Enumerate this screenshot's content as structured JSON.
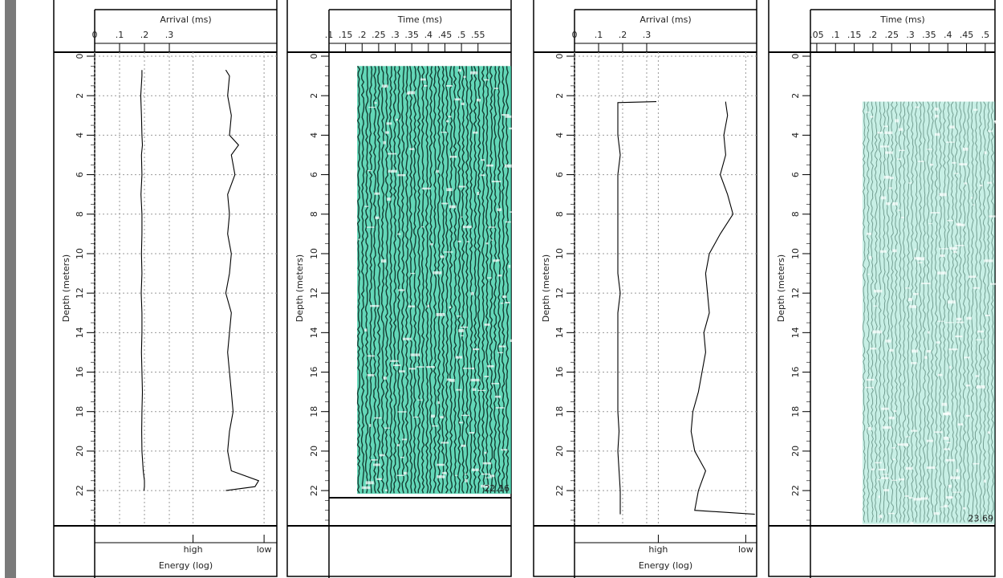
{
  "chart_data": [
    {
      "type": "log",
      "title": "Arrival (ms)",
      "ylabel": "Depth (meters)",
      "x2label": "Energy (log)",
      "xlim": [
        0,
        0.732
      ],
      "xticks": [
        0,
        {
          "value": 0.1,
          "label": ".1"
        },
        {
          "value": 0.2,
          "label": ".2"
        },
        {
          "value": 0.3,
          "label": ".3"
        }
      ],
      "x2lim": [
        0,
        1
      ],
      "x2ticks": [
        {
          "value": 0.54,
          "label": "high"
        },
        {
          "value": 0.93,
          "label": "low"
        }
      ],
      "ylim": [
        0,
        23.5
      ],
      "yticks": [
        0,
        2,
        4,
        6,
        8,
        10,
        12,
        14,
        16,
        18,
        20,
        22
      ],
      "grid": true,
      "depth": [
        0.7,
        1,
        2,
        3,
        4,
        4.5,
        5,
        6,
        7,
        8,
        9,
        10,
        11,
        12,
        13,
        14,
        15,
        16,
        17,
        18,
        19,
        20,
        21,
        21.5,
        21.8,
        22
      ],
      "series": [
        {
          "color": "#000000",
          "values": [
            0.19,
            0.19,
            0.185,
            0.188,
            0.19,
            0.192,
            0.188,
            0.19,
            0.186,
            0.19,
            0.19,
            0.188,
            0.19,
            0.187,
            0.19,
            0.19,
            0.188,
            0.19,
            0.192,
            0.19,
            0.189,
            0.19,
            0.195,
            0.2,
            0.2,
            0.198
          ]
        },
        {
          "color": "#000000",
          "axis": "x2",
          "values": [
            0.72,
            0.74,
            0.73,
            0.75,
            0.74,
            0.79,
            0.75,
            0.77,
            0.73,
            0.74,
            0.73,
            0.75,
            0.74,
            0.72,
            0.75,
            0.74,
            0.73,
            0.74,
            0.75,
            0.76,
            0.74,
            0.73,
            0.75,
            0.9,
            0.88,
            0.72
          ]
        }
      ]
    },
    {
      "type": "seismic",
      "title": "Time (ms)",
      "ylabel": "Depth (meters)",
      "xlim": [
        0.1,
        0.65
      ],
      "xticks": [
        {
          "value": 0.1,
          "label": ".1"
        },
        {
          "value": 0.15,
          "label": ".15"
        },
        {
          "value": 0.2,
          "label": ".2"
        },
        {
          "value": 0.25,
          "label": ".25"
        },
        {
          "value": 0.3,
          "label": ".3"
        },
        {
          "value": 0.35,
          "label": ".35"
        },
        {
          "value": 0.4,
          "label": ".4"
        },
        {
          "value": 0.45,
          "label": ".45"
        },
        {
          "value": 0.5,
          "label": ".5"
        },
        {
          "value": 0.55,
          "label": ".55"
        }
      ],
      "ylim": [
        0,
        23.5
      ],
      "yticks": [
        0,
        2,
        4,
        6,
        8,
        10,
        12,
        14,
        16,
        18,
        20,
        22
      ],
      "trace_time": [
        0.185,
        0.65
      ],
      "trace_depth": [
        0.5,
        22.16
      ],
      "end_depth": 22.16,
      "color": "#2fc9a0"
    },
    {
      "type": "log",
      "title": "Arrival (ms)",
      "ylabel": "Depth (meters)",
      "x2label": "Energy (log)",
      "xlim": [
        0,
        0.757
      ],
      "xticks": [
        0,
        {
          "value": 0.1,
          "label": ".1"
        },
        {
          "value": 0.2,
          "label": ".2"
        },
        {
          "value": 0.3,
          "label": ".3"
        }
      ],
      "x2lim": [
        0,
        1
      ],
      "x2ticks": [
        {
          "value": 0.46,
          "label": "high"
        },
        {
          "value": 0.94,
          "label": "low"
        }
      ],
      "ylim": [
        0,
        23.5
      ],
      "yticks": [
        0,
        2,
        4,
        6,
        8,
        10,
        12,
        14,
        16,
        18,
        20,
        22
      ],
      "grid": true,
      "depth": [
        2.3,
        2.35,
        3,
        4,
        5,
        6,
        7,
        8,
        9,
        10,
        11,
        12,
        13,
        14,
        15,
        16,
        17,
        18,
        19,
        20,
        21,
        22,
        23,
        23.2
      ],
      "series": [
        {
          "color": "#000000",
          "values": [
            0.34,
            0.18,
            0.18,
            0.18,
            0.19,
            0.18,
            0.18,
            0.18,
            0.18,
            0.18,
            0.18,
            0.19,
            0.18,
            0.18,
            0.18,
            0.18,
            0.18,
            0.18,
            0.185,
            0.18,
            0.185,
            0.19,
            0.19,
            0.19
          ]
        },
        {
          "color": "#000000",
          "axis": "x2",
          "values": [
            0.83,
            0.83,
            0.84,
            0.82,
            0.83,
            0.8,
            0.84,
            0.87,
            0.8,
            0.74,
            0.72,
            0.73,
            0.74,
            0.71,
            0.72,
            0.7,
            0.68,
            0.65,
            0.64,
            0.66,
            0.72,
            0.68,
            0.66,
            0.99
          ]
        }
      ]
    },
    {
      "type": "seismic",
      "title": "Time (ms)",
      "ylabel": "Depth (meters)",
      "xlim": [
        0.033,
        0.526
      ],
      "xticks": [
        {
          "value": 0.05,
          "label": ".05"
        },
        {
          "value": 0.1,
          "label": ".1"
        },
        {
          "value": 0.15,
          "label": ".15"
        },
        {
          "value": 0.2,
          "label": ".2"
        },
        {
          "value": 0.25,
          "label": ".25"
        },
        {
          "value": 0.3,
          "label": ".3"
        },
        {
          "value": 0.35,
          "label": ".35"
        },
        {
          "value": 0.4,
          "label": ".4"
        },
        {
          "value": 0.45,
          "label": ".45"
        },
        {
          "value": 0.5,
          "label": ".5"
        }
      ],
      "ylim": [
        0,
        23.5
      ],
      "yticks": [
        0,
        2,
        4,
        6,
        8,
        10,
        12,
        14,
        16,
        18,
        20,
        22
      ],
      "trace_time": [
        0.172,
        0.526
      ],
      "trace_depth": [
        2.3,
        23.69
      ],
      "end_depth": 23.69,
      "color": "#5fd2b4"
    }
  ]
}
